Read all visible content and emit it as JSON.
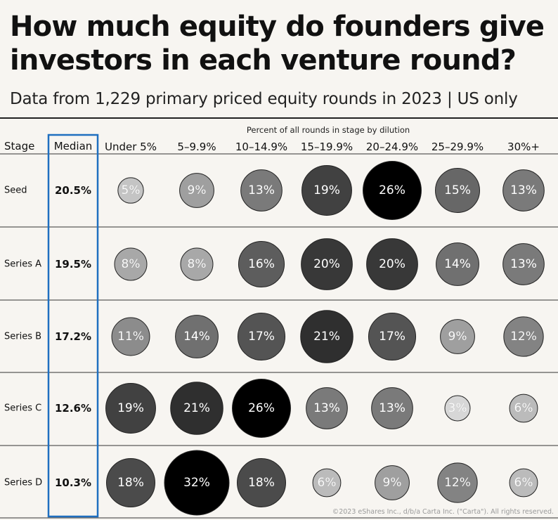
{
  "title": "How much equity do founders give investors in each venture round?",
  "subtitle": "Data from 1,229 primary priced equity rounds in 2023 | US only",
  "dilution_header": "Percent of all rounds in stage by dilution",
  "stage_header": "Stage",
  "median_header": "Median",
  "credit": "©2023 eShares Inc., d/b/a Carta Inc. (\"Carta\"). All rights reserved.",
  "chart_data": {
    "type": "heatmap",
    "title": "How much equity do founders give investors in each venture round?",
    "subtitle": "Data from 1,229 primary priced equity rounds in 2023 | US only",
    "columns": [
      "Under 5%",
      "5–9.9%",
      "10–14.9%",
      "15–19.9%",
      "20–24.9%",
      "25–29.9%",
      "30%+"
    ],
    "rows": [
      {
        "stage": "Seed",
        "median": "20.5%",
        "values": [
          5,
          9,
          13,
          19,
          26,
          15,
          13
        ]
      },
      {
        "stage": "Series A",
        "median": "19.5%",
        "values": [
          8,
          8,
          16,
          20,
          20,
          14,
          13
        ]
      },
      {
        "stage": "Series B",
        "median": "17.2%",
        "values": [
          11,
          14,
          17,
          21,
          17,
          9,
          12
        ]
      },
      {
        "stage": "Series C",
        "median": "12.6%",
        "values": [
          19,
          21,
          26,
          13,
          13,
          3,
          6
        ]
      },
      {
        "stage": "Series D",
        "median": "10.3%",
        "values": [
          18,
          32,
          18,
          6,
          9,
          12,
          6
        ]
      }
    ],
    "highlight_color": "#1f6fc0"
  }
}
